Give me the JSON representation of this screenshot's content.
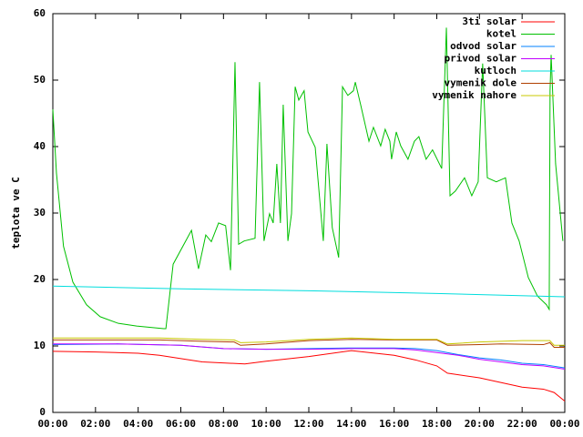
{
  "chart_data": {
    "type": "line",
    "ylabel": "teplota ve C",
    "xlim": [
      0,
      24
    ],
    "ylim": [
      0,
      60
    ],
    "xticks": [
      {
        "value": 0,
        "label": "00:00"
      },
      {
        "value": 2,
        "label": "02:00"
      },
      {
        "value": 4,
        "label": "04:00"
      },
      {
        "value": 6,
        "label": "06:00"
      },
      {
        "value": 8,
        "label": "08:00"
      },
      {
        "value": 10,
        "label": "10:00"
      },
      {
        "value": 12,
        "label": "12:00"
      },
      {
        "value": 14,
        "label": "14:00"
      },
      {
        "value": 16,
        "label": "16:00"
      },
      {
        "value": 18,
        "label": "18:00"
      },
      {
        "value": 20,
        "label": "20:00"
      },
      {
        "value": 22,
        "label": "22:00"
      },
      {
        "value": 24,
        "label": "00:00"
      }
    ],
    "yticks": [
      0,
      10,
      20,
      30,
      40,
      50,
      60
    ],
    "legend": "top-right",
    "series": [
      {
        "name": "3ti solar",
        "color": "#ff0000",
        "x": [
          0,
          2,
          4,
          5,
          7,
          9,
          10,
          12,
          14,
          16,
          17,
          18,
          18.5,
          20,
          21,
          22,
          23,
          23.5,
          24
        ],
        "values": [
          9.2,
          9.1,
          8.9,
          8.6,
          7.6,
          7.3,
          7.7,
          8.4,
          9.3,
          8.6,
          7.9,
          7.0,
          5.9,
          5.2,
          4.5,
          3.8,
          3.5,
          3.0,
          1.7
        ]
      },
      {
        "name": "kotel",
        "color": "#00c000",
        "x": [
          0,
          0.17,
          0.5,
          0.94,
          1.58,
          2.22,
          3.07,
          3.93,
          5.2,
          5.3,
          5.64,
          6.5,
          6.83,
          7.17,
          7.43,
          7.77,
          8.1,
          8.33,
          8.54,
          8.71,
          8.97,
          9.48,
          9.69,
          9.9,
          10.16,
          10.33,
          10.5,
          10.67,
          10.8,
          11.02,
          11.19,
          11.36,
          11.53,
          11.78,
          11.96,
          12.3,
          12.68,
          12.85,
          13.1,
          13.4,
          13.58,
          13.83,
          14.09,
          14.18,
          14.43,
          14.82,
          15.03,
          15.37,
          15.58,
          15.8,
          15.88,
          16.1,
          16.31,
          16.65,
          16.95,
          17.16,
          17.5,
          17.8,
          18.23,
          18.45,
          18.62,
          18.87,
          19.3,
          19.64,
          19.94,
          20.15,
          20.37,
          20.79,
          21.22,
          21.52,
          21.86,
          22.29,
          22.72,
          23.14,
          23.27,
          23.31,
          23.36,
          23.57,
          23.91
        ],
        "values": [
          45.6,
          36,
          25,
          19.6,
          16.2,
          14.4,
          13.4,
          13,
          12.6,
          12.6,
          22.3,
          27.4,
          21.6,
          26.7,
          25.7,
          28.5,
          28.1,
          21.4,
          52.7,
          25.3,
          25.8,
          26.2,
          49.7,
          25.8,
          29.9,
          28.5,
          37.4,
          28.5,
          46.3,
          25.8,
          29.9,
          49,
          47,
          48.4,
          42.2,
          39.9,
          25.8,
          40.4,
          27.8,
          23.3,
          49,
          47.7,
          48.4,
          49.7,
          46.3,
          40.8,
          42.9,
          40.1,
          42.6,
          40.8,
          38.1,
          42.2,
          40.1,
          38.1,
          40.8,
          41.5,
          38.1,
          39.5,
          36.7,
          57.9,
          32.6,
          33.3,
          35.3,
          32.6,
          34.7,
          52.5,
          35.3,
          34.7,
          35.3,
          28.5,
          25.8,
          20.3,
          17.5,
          16.2,
          15.5,
          48.4,
          53.8,
          37.4,
          25.8
        ]
      },
      {
        "name": "odvod solar",
        "color": "#0080ff",
        "x": [
          0,
          3,
          6,
          8,
          10,
          12,
          14,
          16,
          17,
          18,
          19,
          20,
          21,
          22,
          23,
          24
        ],
        "values": [
          10.2,
          10.3,
          10.1,
          9.6,
          9.5,
          9.6,
          9.7,
          9.7,
          9.6,
          9.3,
          8.7,
          8.2,
          7.9,
          7.4,
          7.2,
          6.7
        ]
      },
      {
        "name": "privod solar",
        "color": "#c000ff",
        "x": [
          0,
          3,
          6,
          8,
          10,
          12,
          14,
          16,
          17,
          18,
          19,
          20,
          21,
          22,
          23,
          24
        ],
        "values": [
          10.3,
          10.3,
          10.1,
          9.6,
          9.5,
          9.5,
          9.6,
          9.6,
          9.4,
          9.0,
          8.6,
          8.0,
          7.6,
          7.2,
          7.0,
          6.5
        ]
      },
      {
        "name": "kutloch",
        "color": "#00dddd",
        "x": [
          0,
          6,
          12,
          18,
          24
        ],
        "values": [
          19,
          18.6,
          18.3,
          17.9,
          17.4
        ]
      },
      {
        "name": "vymenik dole",
        "color": "#b04000",
        "x": [
          0,
          5,
          7,
          8.5,
          8.8,
          10,
          12,
          14,
          16,
          18,
          18.5,
          20,
          21,
          23,
          23.3,
          23.5,
          24
        ],
        "values": [
          10.9,
          10.9,
          10.7,
          10.6,
          10.1,
          10.3,
          10.8,
          11.0,
          10.9,
          10.9,
          10.1,
          10.2,
          10.3,
          10.2,
          10.5,
          9.8,
          9.8
        ]
      },
      {
        "name": "vymenik nahore",
        "color": "#c8c800",
        "x": [
          0,
          5,
          7,
          8.5,
          8.8,
          10,
          12,
          14,
          16,
          18,
          18.5,
          20,
          22,
          23.3,
          23.5,
          24
        ],
        "values": [
          11.2,
          11.2,
          11.0,
          10.9,
          10.5,
          10.6,
          11.0,
          11.2,
          11.0,
          11.0,
          10.3,
          10.6,
          10.8,
          10.8,
          10.1,
          10.1
        ]
      }
    ]
  }
}
